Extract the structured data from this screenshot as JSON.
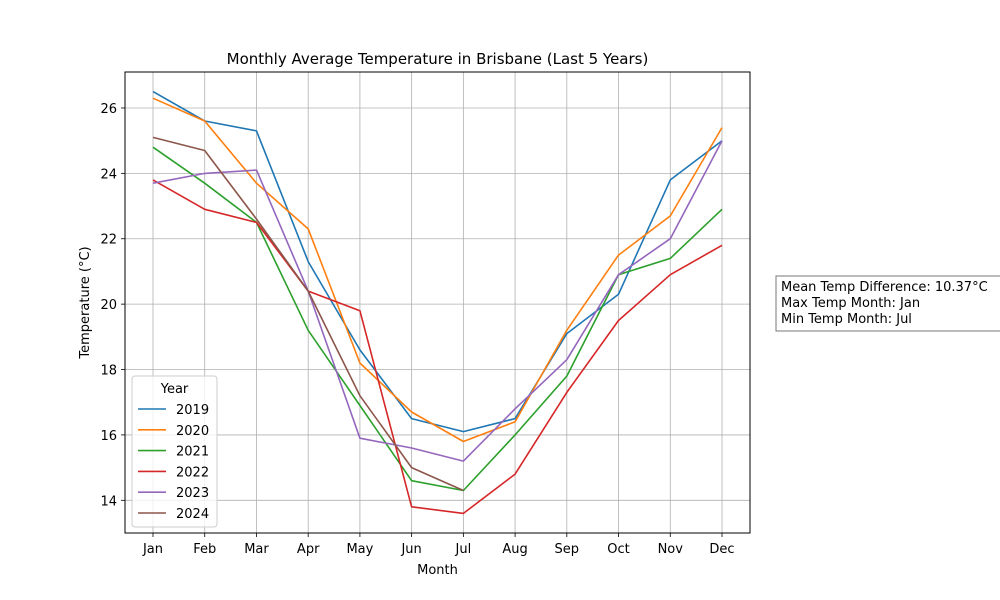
{
  "chart_data": {
    "type": "line",
    "title": "Monthly Average Temperature in Brisbane (Last 5 Years)",
    "xlabel": "Month",
    "ylabel": "Temperature (°C)",
    "categories": [
      "Jan",
      "Feb",
      "Mar",
      "Apr",
      "May",
      "Jun",
      "Jul",
      "Aug",
      "Sep",
      "Oct",
      "Nov",
      "Dec"
    ],
    "ylim": [
      13,
      27.1
    ],
    "yticks": [
      14,
      16,
      18,
      20,
      22,
      24,
      26
    ],
    "grid": true,
    "legend": {
      "title": "Year",
      "placement": "lower-left"
    },
    "series": [
      {
        "name": "2019",
        "color": "#1f77b4",
        "values": [
          26.5,
          25.6,
          25.3,
          21.3,
          18.6,
          16.5,
          16.1,
          16.5,
          19.1,
          20.3,
          23.8,
          25.0
        ]
      },
      {
        "name": "2020",
        "color": "#ff7f0e",
        "values": [
          26.3,
          25.6,
          23.7,
          22.3,
          18.2,
          16.7,
          15.8,
          16.4,
          19.2,
          21.5,
          22.7,
          25.4
        ]
      },
      {
        "name": "2021",
        "color": "#2ca02c",
        "values": [
          24.8,
          23.7,
          22.5,
          19.2,
          16.9,
          14.6,
          14.3,
          16.0,
          17.8,
          20.9,
          21.4,
          22.9
        ]
      },
      {
        "name": "2022",
        "color": "#d62728",
        "values": [
          23.8,
          22.9,
          22.5,
          20.4,
          19.8,
          13.8,
          13.6,
          14.8,
          17.3,
          19.5,
          20.9,
          21.8
        ]
      },
      {
        "name": "2023",
        "color": "#9467bd",
        "values": [
          23.7,
          24.0,
          24.1,
          20.4,
          15.9,
          15.6,
          15.2,
          16.8,
          18.3,
          20.9,
          22.0,
          25.0
        ]
      },
      {
        "name": "2024",
        "color": "#8c564b",
        "values": [
          25.1,
          24.7,
          22.6,
          20.4,
          17.2,
          15.0,
          14.3,
          null,
          null,
          null,
          null,
          null
        ]
      }
    ],
    "annotation": {
      "lines": [
        "Mean Temp Difference: 10.37°C",
        "Max Temp Month: Jan",
        "Min Temp Month: Jul"
      ]
    }
  }
}
